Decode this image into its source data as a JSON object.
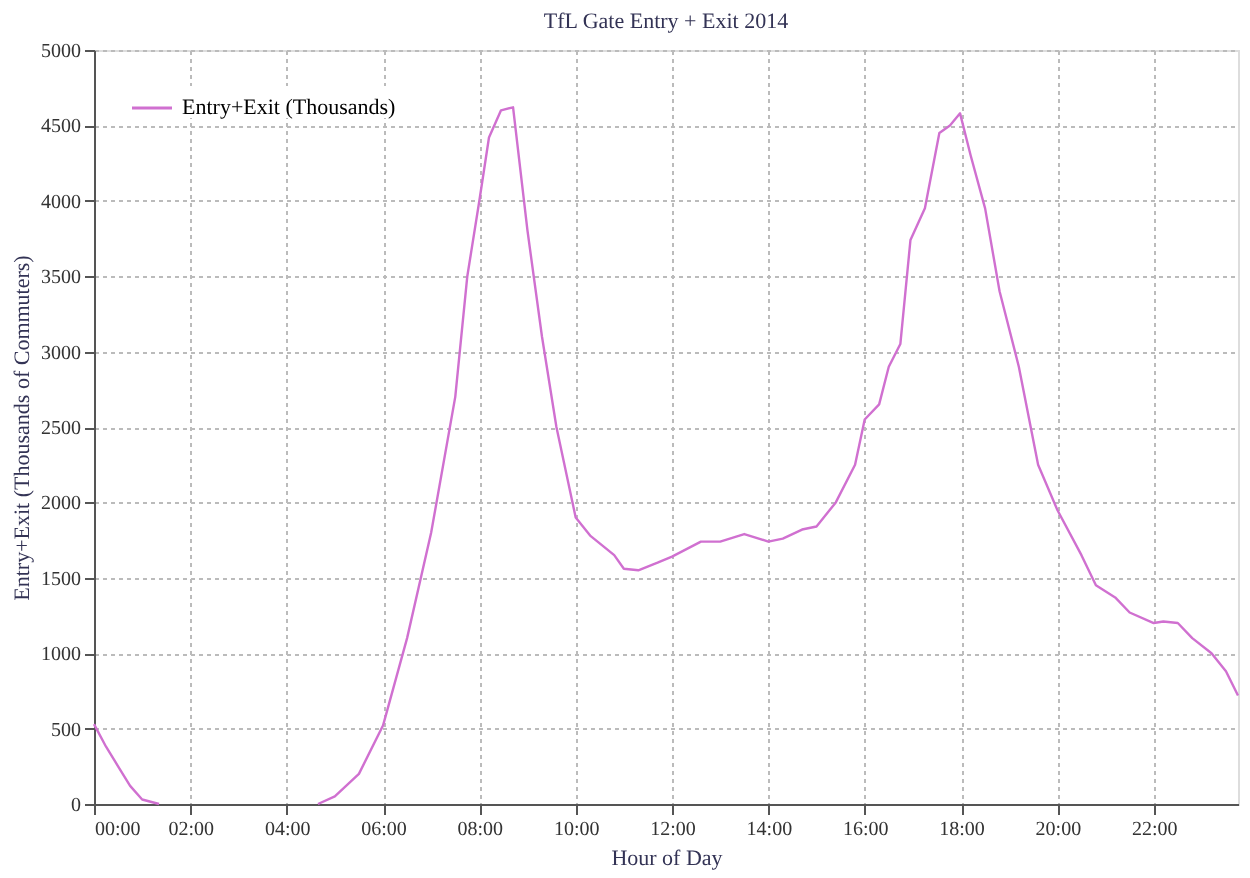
{
  "chart_data": {
    "type": "line",
    "title": "TfL Gate Entry + Exit 2014",
    "xlabel": "Hour of Day",
    "ylabel": "Entry+Exit (Thousands of Commuters)",
    "x": [
      0,
      0.25,
      0.5,
      0.75,
      1.0,
      1.35,
      2,
      3,
      4,
      4.65,
      5.0,
      5.5,
      6.0,
      6.5,
      7.0,
      7.5,
      7.75,
      8.0,
      8.2,
      8.45,
      8.7,
      9.0,
      9.3,
      9.6,
      10.0,
      10.3,
      10.8,
      11.0,
      11.3,
      11.7,
      12.0,
      12.6,
      13.0,
      13.5,
      14.0,
      14.3,
      14.7,
      15.0,
      15.4,
      15.8,
      16.0,
      16.3,
      16.5,
      16.74,
      16.95,
      17.25,
      17.55,
      17.77,
      17.98,
      18.2,
      18.5,
      18.8,
      19.2,
      19.6,
      20.0,
      20.5,
      20.8,
      21.2,
      21.5,
      22.0,
      22.2,
      22.5,
      22.8,
      23.2,
      23.5,
      23.75
    ],
    "series": [
      {
        "name": "Entry+Exit (Thousands)",
        "color": "#d070d0",
        "values": [
          530,
          380,
          250,
          120,
          30,
          0,
          null,
          null,
          null,
          0,
          50,
          200,
          520,
          1100,
          1800,
          2700,
          3500,
          4000,
          4420,
          4600,
          4620,
          3800,
          3100,
          2500,
          1900,
          1780,
          1650,
          1560,
          1550,
          1600,
          1640,
          1740,
          1740,
          1790,
          1740,
          1760,
          1820,
          1840,
          2000,
          2250,
          2550,
          2650,
          2900,
          3050,
          3740,
          3950,
          4450,
          4500,
          4580,
          4300,
          3950,
          3400,
          2900,
          2250,
          1950,
          1650,
          1450,
          1370,
          1270,
          1200,
          1210,
          1200,
          1100,
          1000,
          880,
          720
        ]
      }
    ],
    "xlim": [
      0,
      23.75
    ],
    "xticks": [
      {
        "value": 0,
        "label": "00:00"
      },
      {
        "value": 2,
        "label": "02:00"
      },
      {
        "value": 4,
        "label": "04:00"
      },
      {
        "value": 6,
        "label": "06:00"
      },
      {
        "value": 8,
        "label": "08:00"
      },
      {
        "value": 10,
        "label": "10:00"
      },
      {
        "value": 12,
        "label": "12:00"
      },
      {
        "value": 14,
        "label": "14:00"
      },
      {
        "value": 16,
        "label": "16:00"
      },
      {
        "value": 18,
        "label": "18:00"
      },
      {
        "value": 20,
        "label": "20:00"
      },
      {
        "value": 22,
        "label": "22:00"
      }
    ],
    "ylim": [
      0,
      5000
    ],
    "yticks": [
      0,
      500,
      1000,
      1500,
      2000,
      2500,
      3000,
      3500,
      4000,
      4500,
      5000
    ],
    "grid": true,
    "legend": "top left",
    "marker": "none",
    "line_style": "solid"
  }
}
